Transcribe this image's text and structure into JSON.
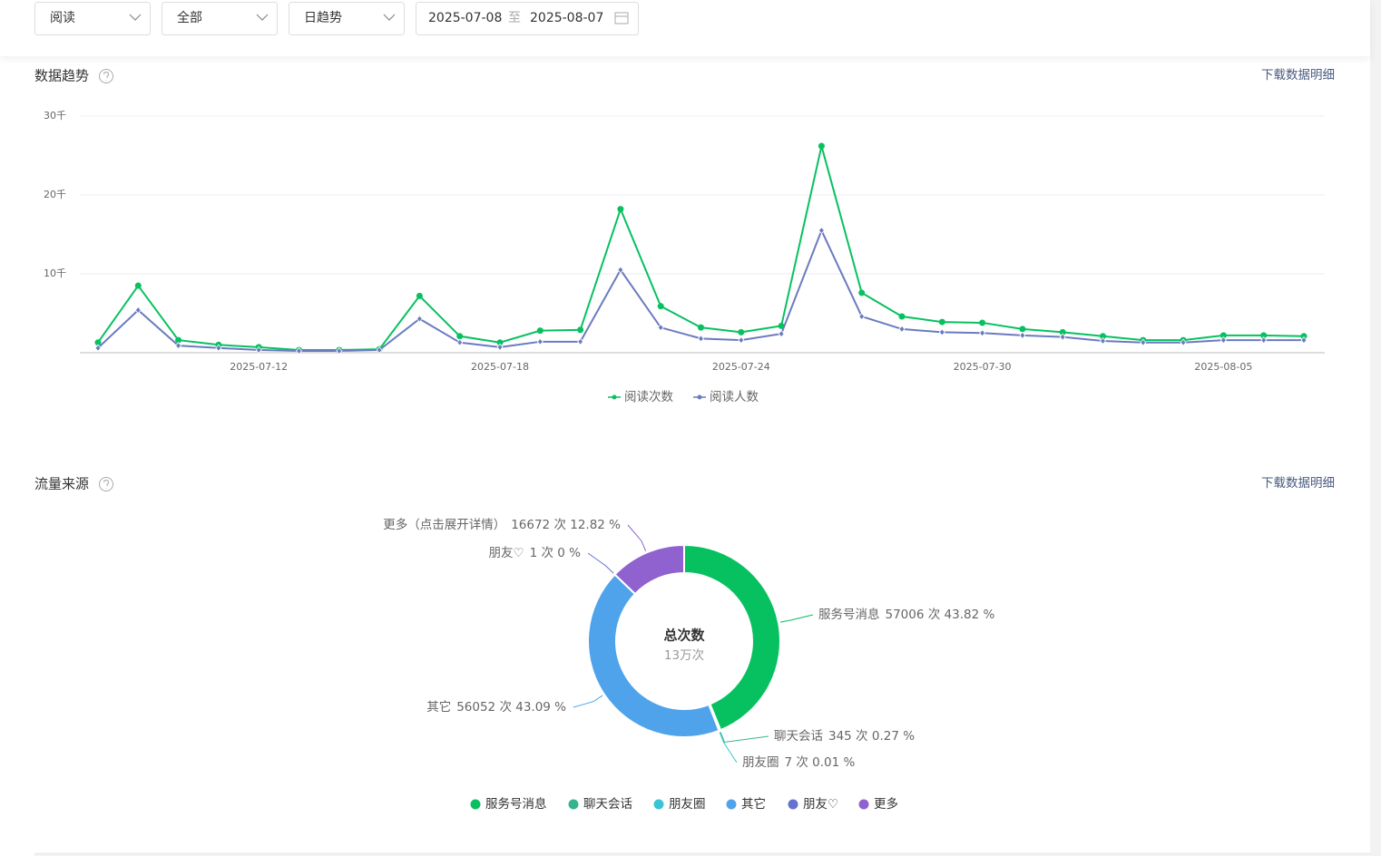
{
  "filters": {
    "metric": "阅读",
    "scope": "全部",
    "granularity": "日趋势",
    "date_start": "2025-07-08",
    "date_sep": "至",
    "date_end": "2025-08-07"
  },
  "trend_section": {
    "title": "数据趋势",
    "download": "下载数据明细"
  },
  "source_section": {
    "title": "流量来源",
    "download": "下载数据明细"
  },
  "chart_data": [
    {
      "type": "line",
      "categories": [
        null,
        null,
        null,
        null,
        "2025-07-12",
        null,
        null,
        null,
        null,
        null,
        "2025-07-18",
        null,
        null,
        null,
        null,
        null,
        "2025-07-24",
        null,
        null,
        null,
        null,
        null,
        "2025-07-30",
        null,
        null,
        null,
        null,
        null,
        "2025-08-05",
        null,
        null
      ],
      "series": [
        {
          "name": "阅读次数",
          "color": "#07c160",
          "marker": "circle",
          "values": [
            1300,
            8500,
            1600,
            1000,
            700,
            350,
            350,
            450,
            7200,
            2100,
            1300,
            2800,
            2900,
            18200,
            5900,
            3200,
            2600,
            3400,
            26200,
            7600,
            4600,
            3900,
            3800,
            3000,
            2600,
            2100,
            1600,
            1600,
            2200,
            2200,
            2100
          ]
        },
        {
          "name": "阅读人数",
          "color": "#6a7bbf",
          "marker": "diamond",
          "values": [
            600,
            5400,
            900,
            600,
            350,
            230,
            230,
            350,
            4300,
            1300,
            700,
            1400,
            1400,
            10500,
            3200,
            1800,
            1600,
            2400,
            15500,
            4600,
            3000,
            2600,
            2500,
            2200,
            2000,
            1500,
            1300,
            1300,
            1600,
            1600,
            1600
          ]
        }
      ],
      "ylim": [
        0,
        30000
      ],
      "yticks": [
        {
          "value": 10000,
          "label": "10千"
        },
        {
          "value": 20000,
          "label": "20千"
        },
        {
          "value": 30000,
          "label": "30千"
        }
      ],
      "grid": true,
      "legend": "bottom"
    },
    {
      "type": "donut",
      "categories": [
        "服务号消息",
        "聊天会话",
        "朋友圈",
        "其它",
        "朋友♡",
        "更多（点击展开详情）"
      ],
      "legend_labels": [
        "服务号消息",
        "聊天会话",
        "朋友圈",
        "其它",
        "朋友♡",
        "更多"
      ],
      "values": [
        57006,
        345,
        7,
        56052,
        1,
        16672
      ],
      "value_labels": [
        "57006 次 43.82 %",
        "345 次 0.27 %",
        "7 次 0.01 %",
        "56052 次 43.09 %",
        "1 次 0 %",
        "16672 次 12.82 %"
      ],
      "colors": [
        "#07c160",
        "#34b48c",
        "#3bc4d5",
        "#4fa3eb",
        "#6672d0",
        "#8f62cf"
      ],
      "center_title": "总次数",
      "center_value": "13万次",
      "legend": "bottom"
    }
  ]
}
